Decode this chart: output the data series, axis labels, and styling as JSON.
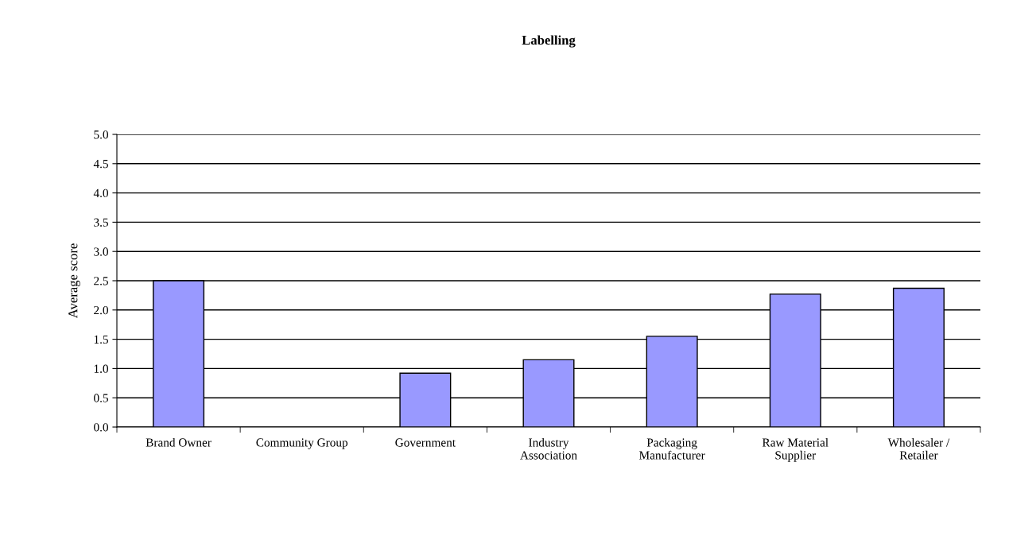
{
  "chart_data": {
    "type": "bar",
    "title": "Labelling",
    "ylabel": "Average score",
    "categories": [
      "Brand Owner",
      "Community Group",
      "Government",
      "Industry\nAssociation",
      "Packaging\nManufacturer",
      "Raw Material\nSupplier",
      "Wholesaler /\nRetailer"
    ],
    "values": [
      2.5,
      null,
      0.92,
      1.15,
      1.55,
      2.27,
      2.37
    ],
    "color": "#9999ff",
    "ylim": [
      0,
      5
    ],
    "yticks": [
      {
        "value": 0,
        "label": "0.0"
      },
      {
        "value": 0.5,
        "label": "0.5"
      },
      {
        "value": 1,
        "label": "1.0"
      },
      {
        "value": 1.5,
        "label": "1.5"
      },
      {
        "value": 2,
        "label": "2.0"
      },
      {
        "value": 2.5,
        "label": "2.5"
      },
      {
        "value": 3,
        "label": "3.0"
      },
      {
        "value": 3.5,
        "label": "3.5"
      },
      {
        "value": 4,
        "label": "4.0"
      },
      {
        "value": 4.5,
        "label": "4.5"
      },
      {
        "value": 5,
        "label": "5.0"
      }
    ],
    "grid": "y",
    "legend": false
  }
}
